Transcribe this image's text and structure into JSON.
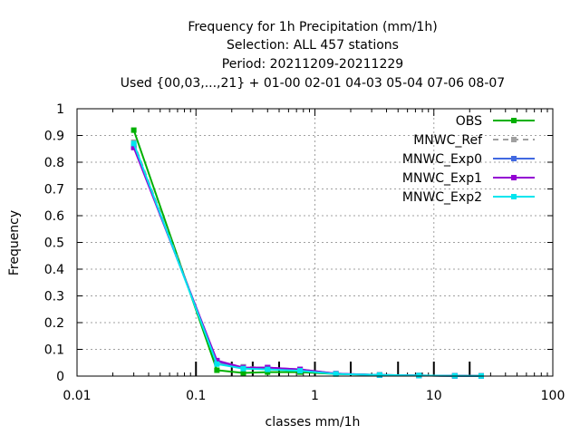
{
  "chart_data": {
    "type": "line",
    "title_lines": [
      "Frequency  for 1h Precipitation (mm/1h)",
      "Selection: ALL    457 stations",
      "Period: 20211209-20211229",
      "Used {00,03,...,21} + 01-00 02-01 04-03 05-04 07-06 08-07"
    ],
    "xlabel": "classes mm/1h",
    "ylabel": "Frequency",
    "xscale": "log",
    "xlim": [
      0.01,
      100
    ],
    "ylim": [
      0,
      1
    ],
    "x_ticks": [
      0.01,
      0.1,
      1,
      10,
      100
    ],
    "x_tick_labels": [
      "0.01",
      "0.1",
      "1",
      "10",
      "100"
    ],
    "y_ticks": [
      0,
      0.1,
      0.2,
      0.3,
      0.4,
      0.5,
      0.6,
      0.7,
      0.8,
      0.9,
      1
    ],
    "y_tick_labels": [
      "0",
      "0.1",
      "0.2",
      "0.3",
      "0.4",
      "0.5",
      "0.6",
      "0.7",
      "0.8",
      "0.9",
      "1"
    ],
    "grid": true,
    "legend_position": "top-right",
    "sample_marks_x": [
      0.1,
      0.2,
      0.3,
      0.5,
      1,
      2,
      5,
      10,
      20
    ],
    "x": [
      0.03,
      0.15,
      0.25,
      0.4,
      0.75,
      1.5,
      3.5,
      7.5,
      15,
      25
    ],
    "series": [
      {
        "name": "OBS",
        "color": "#00b000",
        "dashed": false,
        "values": [
          0.92,
          0.022,
          0.012,
          0.015,
          0.015,
          0.008,
          0.004,
          0.002,
          0.001,
          0.0005
        ]
      },
      {
        "name": "MNWC_Ref",
        "color": "#a0a0a0",
        "dashed": true,
        "values": [
          0.875,
          0.05,
          0.035,
          0.03,
          0.022,
          0.009,
          0.004,
          0.002,
          0.001,
          0.0005
        ]
      },
      {
        "name": "MNWC_Exp0",
        "color": "#4169e1",
        "dashed": false,
        "values": [
          0.86,
          0.055,
          0.03,
          0.032,
          0.025,
          0.009,
          0.004,
          0.002,
          0.001,
          0.0005
        ]
      },
      {
        "name": "MNWC_Exp1",
        "color": "#9400d3",
        "dashed": false,
        "values": [
          0.855,
          0.058,
          0.032,
          0.032,
          0.025,
          0.009,
          0.004,
          0.002,
          0.001,
          0.0005
        ]
      },
      {
        "name": "MNWC_Exp2",
        "color": "#00e5ee",
        "dashed": false,
        "values": [
          0.87,
          0.045,
          0.028,
          0.025,
          0.02,
          0.008,
          0.004,
          0.002,
          0.001,
          0.0005
        ]
      }
    ]
  }
}
